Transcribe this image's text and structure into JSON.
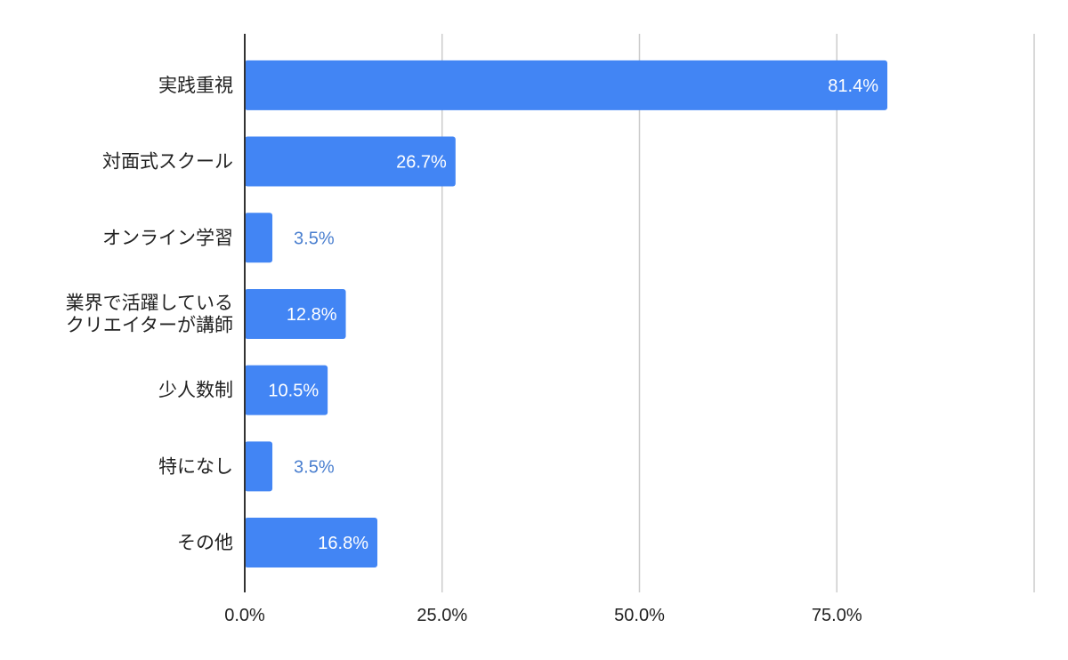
{
  "chart_data": {
    "type": "bar",
    "orientation": "horizontal",
    "categories": [
      [
        "実践重視"
      ],
      [
        "対面式スクール"
      ],
      [
        "オンライン学習"
      ],
      [
        "業界で活躍している",
        "クリエイターが講師"
      ],
      [
        "少人数制"
      ],
      [
        "特になし"
      ],
      [
        "その他"
      ]
    ],
    "values": [
      81.4,
      26.7,
      3.5,
      12.8,
      10.5,
      3.5,
      16.8
    ],
    "data_labels": [
      "81.4%",
      "26.7%",
      "3.5%",
      "12.8%",
      "10.5%",
      "3.5%",
      "16.8%"
    ],
    "xlim": [
      0,
      100
    ],
    "x_ticks": [
      0,
      25,
      50,
      75,
      100
    ],
    "x_tick_labels": [
      "0.0%",
      "25.0%",
      "50.0%",
      "75.0%",
      ""
    ],
    "grid": "vertical",
    "bar_color": "#4285f4",
    "label_inside_color": "#ffffff",
    "label_outside_color": "#4a7fcf",
    "text_color": "#222222",
    "grid_color": "#cccccc",
    "axis_color": "#333333"
  }
}
